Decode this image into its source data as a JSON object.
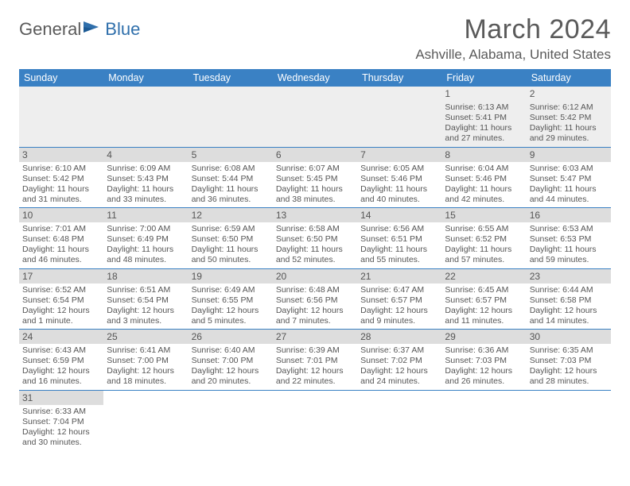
{
  "logo": {
    "part1": "General",
    "part2": "Blue"
  },
  "title": "March 2024",
  "location": "Ashville, Alabama, United States",
  "style": {
    "header_bg": "#3a81c4",
    "header_fg": "#ffffff",
    "row_divider": "#3a81c4",
    "daynum_bg": "#dddddd",
    "first_row_bg": "#eeeeee",
    "text_color": "#555555",
    "logo_blue": "#2f6fab",
    "logo_gray": "#5a5a5a",
    "title_fontsize": 34,
    "location_fontsize": 17,
    "header_fontsize": 12.5,
    "info_fontsize": 10.5
  },
  "dayHeaders": [
    "Sunday",
    "Monday",
    "Tuesday",
    "Wednesday",
    "Thursday",
    "Friday",
    "Saturday"
  ],
  "weeks": [
    [
      null,
      null,
      null,
      null,
      null,
      {
        "n": "1",
        "sr": "6:13 AM",
        "ss": "5:41 PM",
        "dl": "11 hours and 27 minutes."
      },
      {
        "n": "2",
        "sr": "6:12 AM",
        "ss": "5:42 PM",
        "dl": "11 hours and 29 minutes."
      }
    ],
    [
      {
        "n": "3",
        "sr": "6:10 AM",
        "ss": "5:42 PM",
        "dl": "11 hours and 31 minutes."
      },
      {
        "n": "4",
        "sr": "6:09 AM",
        "ss": "5:43 PM",
        "dl": "11 hours and 33 minutes."
      },
      {
        "n": "5",
        "sr": "6:08 AM",
        "ss": "5:44 PM",
        "dl": "11 hours and 36 minutes."
      },
      {
        "n": "6",
        "sr": "6:07 AM",
        "ss": "5:45 PM",
        "dl": "11 hours and 38 minutes."
      },
      {
        "n": "7",
        "sr": "6:05 AM",
        "ss": "5:46 PM",
        "dl": "11 hours and 40 minutes."
      },
      {
        "n": "8",
        "sr": "6:04 AM",
        "ss": "5:46 PM",
        "dl": "11 hours and 42 minutes."
      },
      {
        "n": "9",
        "sr": "6:03 AM",
        "ss": "5:47 PM",
        "dl": "11 hours and 44 minutes."
      }
    ],
    [
      {
        "n": "10",
        "sr": "7:01 AM",
        "ss": "6:48 PM",
        "dl": "11 hours and 46 minutes."
      },
      {
        "n": "11",
        "sr": "7:00 AM",
        "ss": "6:49 PM",
        "dl": "11 hours and 48 minutes."
      },
      {
        "n": "12",
        "sr": "6:59 AM",
        "ss": "6:50 PM",
        "dl": "11 hours and 50 minutes."
      },
      {
        "n": "13",
        "sr": "6:58 AM",
        "ss": "6:50 PM",
        "dl": "11 hours and 52 minutes."
      },
      {
        "n": "14",
        "sr": "6:56 AM",
        "ss": "6:51 PM",
        "dl": "11 hours and 55 minutes."
      },
      {
        "n": "15",
        "sr": "6:55 AM",
        "ss": "6:52 PM",
        "dl": "11 hours and 57 minutes."
      },
      {
        "n": "16",
        "sr": "6:53 AM",
        "ss": "6:53 PM",
        "dl": "11 hours and 59 minutes."
      }
    ],
    [
      {
        "n": "17",
        "sr": "6:52 AM",
        "ss": "6:54 PM",
        "dl": "12 hours and 1 minute."
      },
      {
        "n": "18",
        "sr": "6:51 AM",
        "ss": "6:54 PM",
        "dl": "12 hours and 3 minutes."
      },
      {
        "n": "19",
        "sr": "6:49 AM",
        "ss": "6:55 PM",
        "dl": "12 hours and 5 minutes."
      },
      {
        "n": "20",
        "sr": "6:48 AM",
        "ss": "6:56 PM",
        "dl": "12 hours and 7 minutes."
      },
      {
        "n": "21",
        "sr": "6:47 AM",
        "ss": "6:57 PM",
        "dl": "12 hours and 9 minutes."
      },
      {
        "n": "22",
        "sr": "6:45 AM",
        "ss": "6:57 PM",
        "dl": "12 hours and 11 minutes."
      },
      {
        "n": "23",
        "sr": "6:44 AM",
        "ss": "6:58 PM",
        "dl": "12 hours and 14 minutes."
      }
    ],
    [
      {
        "n": "24",
        "sr": "6:43 AM",
        "ss": "6:59 PM",
        "dl": "12 hours and 16 minutes."
      },
      {
        "n": "25",
        "sr": "6:41 AM",
        "ss": "7:00 PM",
        "dl": "12 hours and 18 minutes."
      },
      {
        "n": "26",
        "sr": "6:40 AM",
        "ss": "7:00 PM",
        "dl": "12 hours and 20 minutes."
      },
      {
        "n": "27",
        "sr": "6:39 AM",
        "ss": "7:01 PM",
        "dl": "12 hours and 22 minutes."
      },
      {
        "n": "28",
        "sr": "6:37 AM",
        "ss": "7:02 PM",
        "dl": "12 hours and 24 minutes."
      },
      {
        "n": "29",
        "sr": "6:36 AM",
        "ss": "7:03 PM",
        "dl": "12 hours and 26 minutes."
      },
      {
        "n": "30",
        "sr": "6:35 AM",
        "ss": "7:03 PM",
        "dl": "12 hours and 28 minutes."
      }
    ],
    [
      {
        "n": "31",
        "sr": "6:33 AM",
        "ss": "7:04 PM",
        "dl": "12 hours and 30 minutes."
      },
      null,
      null,
      null,
      null,
      null,
      null
    ]
  ],
  "labels": {
    "sunrise": "Sunrise:",
    "sunset": "Sunset:",
    "daylight": "Daylight:"
  }
}
